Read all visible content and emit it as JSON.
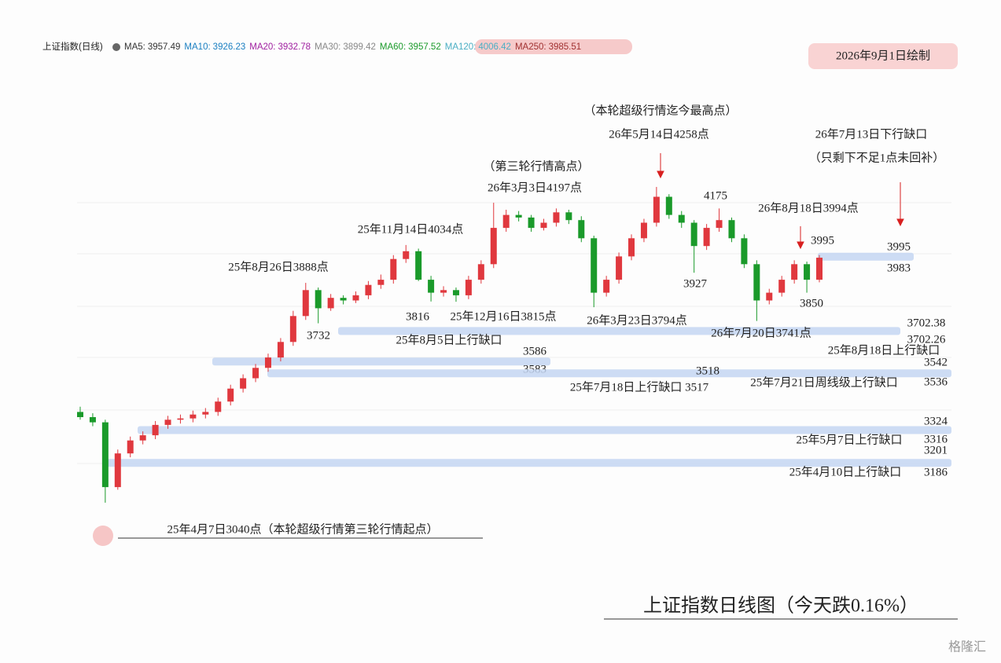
{
  "chart_data": {
    "type": "candlestick",
    "index_name": "上证指数(日线)",
    "indicators": [
      {
        "name": "MA5:",
        "value": 3957.49,
        "color": "#333333"
      },
      {
        "name": "MA10:",
        "value": 3926.23,
        "color": "#1a7fc1"
      },
      {
        "name": "MA20:",
        "value": 3932.78,
        "color": "#a020a0"
      },
      {
        "name": "MA30:",
        "value": 3899.42,
        "color": "#888888"
      },
      {
        "name": "MA60:",
        "value": 3957.52,
        "color": "#1a9a2a"
      },
      {
        "name": "MA120:",
        "value": 4006.42,
        "color": "#4aaec4"
      },
      {
        "name": "MA250:",
        "value": 3985.51,
        "color": "#a03030"
      }
    ],
    "date_note": "2026年9月1日绘制",
    "title": "上证指数日线图（今天跌0.16%）",
    "watermark": "格隆汇",
    "ylim": [
      2900,
      4400
    ],
    "up_color": "#e0383e",
    "down_color": "#1a9a2a",
    "open": [
      3390,
      3370,
      3350,
      3100,
      3230,
      3280,
      3300,
      3340,
      3360,
      3365,
      3380,
      3390,
      3430,
      3480,
      3520,
      3560,
      3600,
      3660,
      3760,
      3860,
      3790,
      3830,
      3820,
      3840,
      3880,
      3900,
      3980,
      4010,
      3900,
      3850,
      3860,
      3840,
      3900,
      3960,
      4100,
      4150,
      4140,
      4100,
      4120,
      4160,
      4130,
      4060,
      3850,
      3900,
      3990,
      4060,
      4120,
      4220,
      4150,
      4120,
      4030,
      4100,
      4130,
      4060,
      3960,
      3820,
      3850,
      3900,
      3960,
      3900
    ],
    "high": [
      3410,
      3385,
      3360,
      3245,
      3295,
      3315,
      3355,
      3375,
      3380,
      3395,
      3405,
      3445,
      3495,
      3535,
      3575,
      3615,
      3675,
      3780,
      3888,
      3870,
      3845,
      3840,
      3855,
      3895,
      3920,
      3995,
      4034,
      4020,
      3915,
      3875,
      3870,
      3915,
      3975,
      4197,
      4170,
      4165,
      4150,
      4135,
      4175,
      4170,
      4145,
      4070,
      3915,
      4005,
      4075,
      4135,
      4258,
      4230,
      4165,
      4130,
      4115,
      4175,
      4140,
      4075,
      3975,
      3865,
      3915,
      3975,
      3970,
      3995
    ],
    "low": [
      3360,
      3335,
      3040,
      3090,
      3215,
      3265,
      3285,
      3325,
      3345,
      3350,
      3365,
      3375,
      3415,
      3465,
      3505,
      3545,
      3585,
      3645,
      3745,
      3732,
      3780,
      3805,
      3810,
      3825,
      3865,
      3885,
      3965,
      3895,
      3816,
      3835,
      3815,
      3825,
      3885,
      3945,
      4085,
      4125,
      4085,
      4090,
      4105,
      4115,
      4045,
      3794,
      3835,
      3885,
      3975,
      4045,
      4105,
      4135,
      4100,
      3927,
      4015,
      4085,
      4045,
      3945,
      3741,
      3805,
      3835,
      3885,
      3850,
      3890
    ],
    "close": [
      3370,
      3350,
      3100,
      3230,
      3280,
      3300,
      3340,
      3360,
      3365,
      3380,
      3390,
      3430,
      3480,
      3520,
      3560,
      3600,
      3660,
      3760,
      3860,
      3790,
      3830,
      3820,
      3840,
      3880,
      3900,
      3980,
      4010,
      3900,
      3850,
      3860,
      3840,
      3900,
      3960,
      4100,
      4150,
      4140,
      4100,
      4120,
      4160,
      4130,
      4060,
      3850,
      3900,
      3990,
      4060,
      4120,
      4220,
      4150,
      4120,
      4030,
      4100,
      4130,
      4060,
      3960,
      3820,
      3850,
      3900,
      3960,
      3900,
      3985
    ],
    "gaps": [
      {
        "top": 3995,
        "bottom": 3983
      },
      {
        "top": 3702.38,
        "bottom": 3702.26
      },
      {
        "top": 3586,
        "bottom": 3583
      },
      {
        "top": 3542,
        "bottom": 3536
      },
      {
        "top": 3324,
        "bottom": 3316
      },
      {
        "top": 3201,
        "bottom": 3186
      }
    ],
    "annotations": [
      "（本轮超级行情迄今最高点）",
      "26年5月14日4258点",
      "26年7月13日下行缺口",
      "（只剩下不足1点未回补）",
      "（第三轮行情高点）",
      "26年3月3日4197点",
      "4175",
      "26年8月18日3994点",
      "25年11月14日4034点",
      "3995",
      "25年8月26日3888点",
      "3927",
      "3850",
      "3816",
      "25年12月16日3815点",
      "26年3月23日3794点",
      "3732",
      "26年7月20日3741点",
      "25年8月5日上行缺口",
      "25年7月18日上行缺口 3517",
      "3518",
      "25年7月21日周线级上行缺口",
      "25年8月18日上行缺口",
      "25年5月7日上行缺口",
      "25年4月10日上行缺口",
      "25年4月7日3040点（本轮超级行情第三轮行情起点）"
    ]
  }
}
